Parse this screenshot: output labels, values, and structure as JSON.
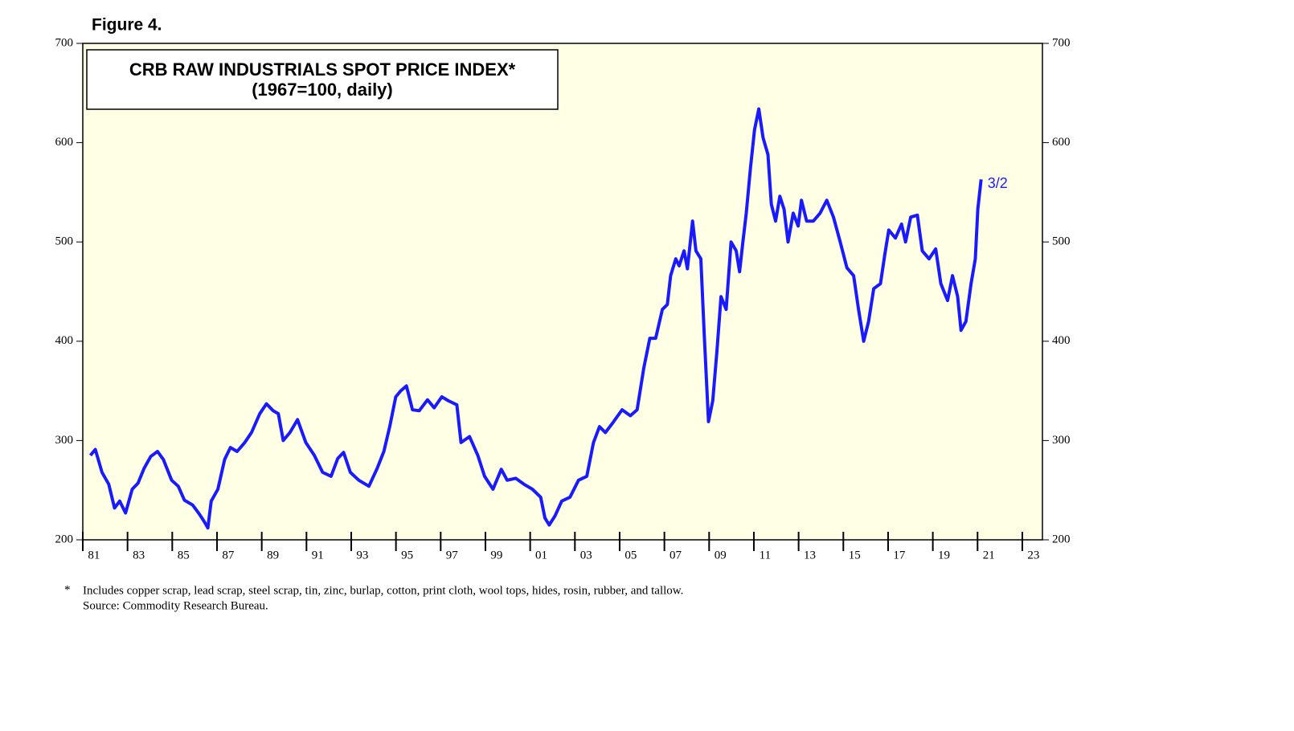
{
  "chart_data": {
    "type": "line",
    "figure_label": "Figure 4.",
    "title": "CRB RAW INDUSTRIALS SPOT PRICE INDEX*",
    "subtitle": "(1967=100, daily)",
    "annotation": "3/2",
    "note_marker": "*",
    "notes": [
      "Includes copper scrap, lead scrap, steel scrap, tin, zinc, burlap, cotton, print cloth, wool tops, hides, rosin, rubber, and tallow.",
      "Source: Commodity Research Bureau."
    ],
    "color": "#1a1aff",
    "background": "#ffffe6",
    "xlim": [
      1981,
      2023.9
    ],
    "ylim": [
      200,
      700
    ],
    "yticks": [
      200,
      300,
      400,
      500,
      600,
      700
    ],
    "xticks": [
      {
        "value": 1981,
        "label": "81"
      },
      {
        "value": 1983,
        "label": "83"
      },
      {
        "value": 1985,
        "label": "85"
      },
      {
        "value": 1987,
        "label": "87"
      },
      {
        "value": 1989,
        "label": "89"
      },
      {
        "value": 1991,
        "label": "91"
      },
      {
        "value": 1993,
        "label": "93"
      },
      {
        "value": 1995,
        "label": "95"
      },
      {
        "value": 1997,
        "label": "97"
      },
      {
        "value": 1999,
        "label": "99"
      },
      {
        "value": 2001,
        "label": "01"
      },
      {
        "value": 2003,
        "label": "03"
      },
      {
        "value": 2005,
        "label": "05"
      },
      {
        "value": 2007,
        "label": "07"
      },
      {
        "value": 2009,
        "label": "09"
      },
      {
        "value": 2011,
        "label": "11"
      },
      {
        "value": 2013,
        "label": "13"
      },
      {
        "value": 2015,
        "label": "15"
      },
      {
        "value": 2017,
        "label": "17"
      },
      {
        "value": 2019,
        "label": "19"
      },
      {
        "value": 2021,
        "label": "21"
      },
      {
        "value": 2023,
        "label": "23"
      }
    ],
    "x": [
      1981.34,
      1981.56,
      1981.86,
      1982.16,
      1982.42,
      1982.65,
      1982.91,
      1983.21,
      1983.47,
      1983.74,
      1984.04,
      1984.34,
      1984.6,
      1984.97,
      1985.27,
      1985.54,
      1985.91,
      1986.21,
      1986.44,
      1986.59,
      1986.74,
      1987.04,
      1987.34,
      1987.6,
      1987.9,
      1988.24,
      1988.54,
      1988.91,
      1989.21,
      1989.51,
      1989.74,
      1989.96,
      1990.26,
      1990.6,
      1990.97,
      1991.35,
      1991.72,
      1992.1,
      1992.4,
      1992.66,
      1992.96,
      1993.34,
      1993.79,
      1994.16,
      1994.46,
      1994.72,
      1994.99,
      1995.21,
      1995.47,
      1995.74,
      1996.04,
      1996.41,
      1996.71,
      1997.05,
      1997.35,
      1997.72,
      1997.91,
      1998.29,
      1998.66,
      1998.96,
      1999.34,
      1999.71,
      1999.97,
      2000.35,
      2000.72,
      2001.1,
      2001.47,
      2001.66,
      2001.85,
      2002.11,
      2002.41,
      2002.78,
      2003.16,
      2003.53,
      2003.83,
      2004.1,
      2004.36,
      2004.73,
      2005.11,
      2005.48,
      2005.78,
      2006.08,
      2006.35,
      2006.61,
      2006.91,
      2007.13,
      2007.28,
      2007.51,
      2007.66,
      2007.88,
      2008.03,
      2008.26,
      2008.41,
      2008.63,
      2008.78,
      2008.97,
      2009.16,
      2009.35,
      2009.53,
      2009.76,
      2009.98,
      2010.21,
      2010.36,
      2010.51,
      2010.66,
      2010.85,
      2011.03,
      2011.22,
      2011.41,
      2011.63,
      2011.78,
      2011.97,
      2012.16,
      2012.35,
      2012.53,
      2012.76,
      2012.98,
      2013.13,
      2013.36,
      2013.66,
      2013.96,
      2014.26,
      2014.56,
      2014.86,
      2015.16,
      2015.46,
      2015.68,
      2015.91,
      2016.13,
      2016.36,
      2016.66,
      2016.85,
      2017.03,
      2017.33,
      2017.6,
      2017.78,
      2018.01,
      2018.31,
      2018.53,
      2018.83,
      2019.13,
      2019.36,
      2019.66,
      2019.88,
      2020.11,
      2020.26,
      2020.48,
      2020.71,
      2020.9,
      2021.01,
      2021.16
    ],
    "values": [
      285,
      291,
      268,
      256,
      232,
      239,
      227,
      251,
      257,
      272,
      284,
      289,
      281,
      260,
      254,
      240,
      235,
      226,
      218,
      212,
      239,
      251,
      281,
      293,
      289,
      298,
      308,
      327,
      337,
      330,
      327,
      300,
      308,
      321,
      298,
      285,
      268,
      264,
      282,
      288,
      268,
      260,
      254,
      272,
      289,
      314,
      344,
      350,
      355,
      331,
      330,
      341,
      333,
      344,
      340,
      336,
      298,
      304,
      285,
      264,
      251,
      271,
      260,
      262,
      256,
      251,
      243,
      222,
      215,
      224,
      239,
      243,
      260,
      264,
      298,
      314,
      308,
      319,
      331,
      325,
      331,
      373,
      403,
      403,
      432,
      437,
      466,
      483,
      476,
      491,
      473,
      521,
      491,
      483,
      407,
      319,
      340,
      390,
      445,
      432,
      500,
      491,
      470,
      500,
      529,
      575,
      613,
      634,
      605,
      588,
      538,
      521,
      546,
      533,
      500,
      529,
      516,
      542,
      521,
      521,
      529,
      542,
      525,
      500,
      474,
      466,
      432,
      400,
      420,
      453,
      458,
      487,
      512,
      504,
      518,
      500,
      525,
      527,
      491,
      483,
      493,
      458,
      441,
      466,
      445,
      411,
      420,
      458,
      483,
      533,
      563
    ]
  }
}
